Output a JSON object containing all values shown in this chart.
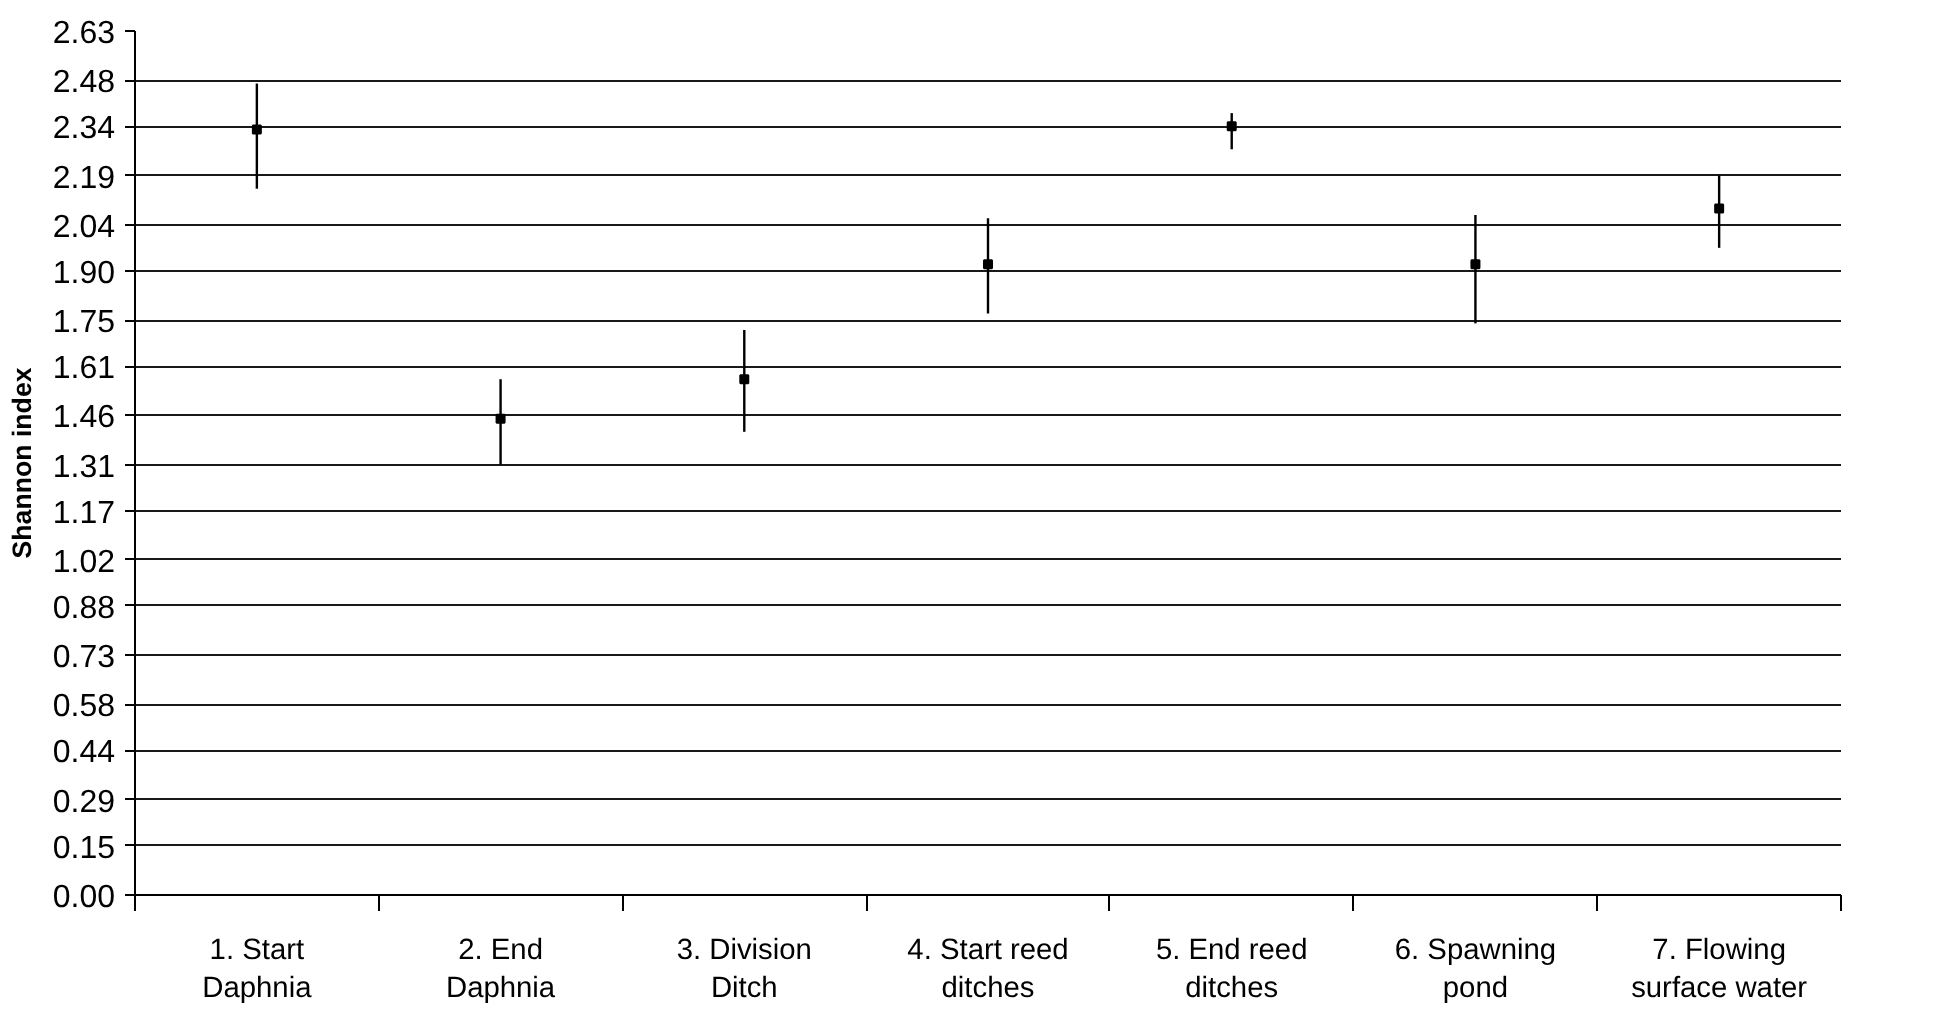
{
  "chart_data": {
    "type": "scatter",
    "ylabel": "Shannon index",
    "categories": [
      "1. Start\nDaphnia",
      "2. End\nDaphnia",
      "3. Division\nDitch",
      "4. Start reed\nditches",
      "5. End reed\nditches",
      "6. Spawning\npond",
      "7. Flowing\nsurface water"
    ],
    "series": [
      {
        "color": "#000000",
        "values": [
          2.33,
          1.45,
          1.57,
          1.92,
          2.34,
          1.92,
          2.09
        ],
        "errors": [
          [
            2.15,
            2.47
          ],
          [
            1.31,
            1.57
          ],
          [
            1.41,
            1.72
          ],
          [
            1.77,
            2.06
          ],
          [
            2.27,
            2.38
          ],
          [
            1.74,
            2.07
          ],
          [
            1.97,
            2.19
          ]
        ]
      }
    ],
    "ylim": [
      0,
      2.63
    ],
    "yticks": [
      {
        "value": 0,
        "label": "0.00"
      },
      0.15,
      0.29,
      0.44,
      0.58,
      0.73,
      0.88,
      1.02,
      1.17,
      1.31,
      1.46,
      1.61,
      1.75,
      {
        "value": 1.9,
        "label": "1.90"
      },
      2.04,
      2.19,
      2.34,
      2.48,
      2.63
    ],
    "grid": "y",
    "marker": "square"
  }
}
